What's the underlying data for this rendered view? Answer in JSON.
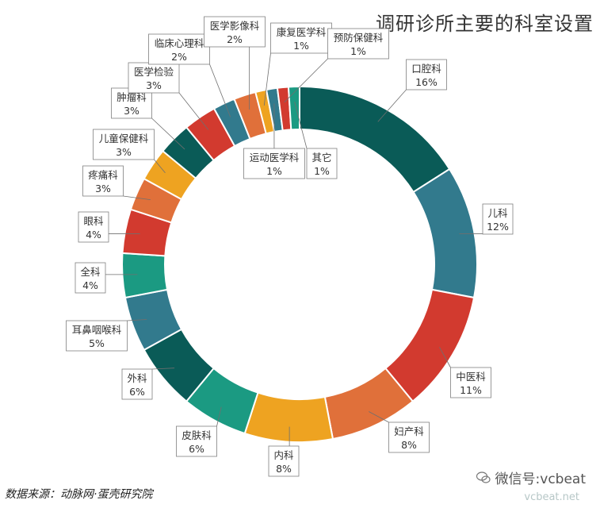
{
  "chart_data": {
    "type": "pie",
    "variant": "donut",
    "title": "调研诊所主要的科室设置",
    "slices": [
      {
        "name": "口腔科",
        "value": 16,
        "label": "16%",
        "color": "#0a5b57"
      },
      {
        "name": "儿科",
        "value": 12,
        "label": "12%",
        "color": "#327a8d"
      },
      {
        "name": "中医科",
        "value": 11,
        "label": "11%",
        "color": "#d23a2f"
      },
      {
        "name": "妇产科",
        "value": 8,
        "label": "8%",
        "color": "#e0703a"
      },
      {
        "name": "内科",
        "value": 8,
        "label": "8%",
        "color": "#eea321"
      },
      {
        "name": "皮肤科",
        "value": 6,
        "label": "6%",
        "color": "#1b9a82"
      },
      {
        "name": "外科",
        "value": 6,
        "label": "6%",
        "color": "#0a5b57"
      },
      {
        "name": "耳鼻咽喉科",
        "value": 5,
        "label": "5%",
        "color": "#327a8d"
      },
      {
        "name": "全科",
        "value": 4,
        "label": "4%",
        "color": "#1b9a82"
      },
      {
        "name": "眼科",
        "value": 4,
        "label": "4%",
        "color": "#d23a2f"
      },
      {
        "name": "疼痛科",
        "value": 3,
        "label": "3%",
        "color": "#e0703a"
      },
      {
        "name": "儿童保健科",
        "value": 3,
        "label": "3%",
        "color": "#eea321"
      },
      {
        "name": "肿瘤科",
        "value": 3,
        "label": "3%",
        "color": "#0a5b57"
      },
      {
        "name": "医学检验",
        "value": 3,
        "label": "3%",
        "color": "#d23a2f"
      },
      {
        "name": "临床心理科",
        "value": 2,
        "label": "2%",
        "color": "#327a8d"
      },
      {
        "name": "医学影像科",
        "value": 2,
        "label": "2%",
        "color": "#e0703a"
      },
      {
        "name": "康复医学科",
        "value": 1,
        "label": "1%",
        "color": "#eea321"
      },
      {
        "name": "运动医学科",
        "value": 1,
        "label": "1%",
        "color": "#327a8d"
      },
      {
        "name": "预防保健科",
        "value": 1,
        "label": "1%",
        "color": "#d23a2f"
      },
      {
        "name": "其它",
        "value": 1,
        "label": "1%",
        "color": "#1b9a82"
      }
    ]
  },
  "footer": {
    "source": "数据来源：动脉网·蛋壳研究院",
    "wechat": "微信号:vcbeat",
    "site": "vcbeat.net"
  }
}
